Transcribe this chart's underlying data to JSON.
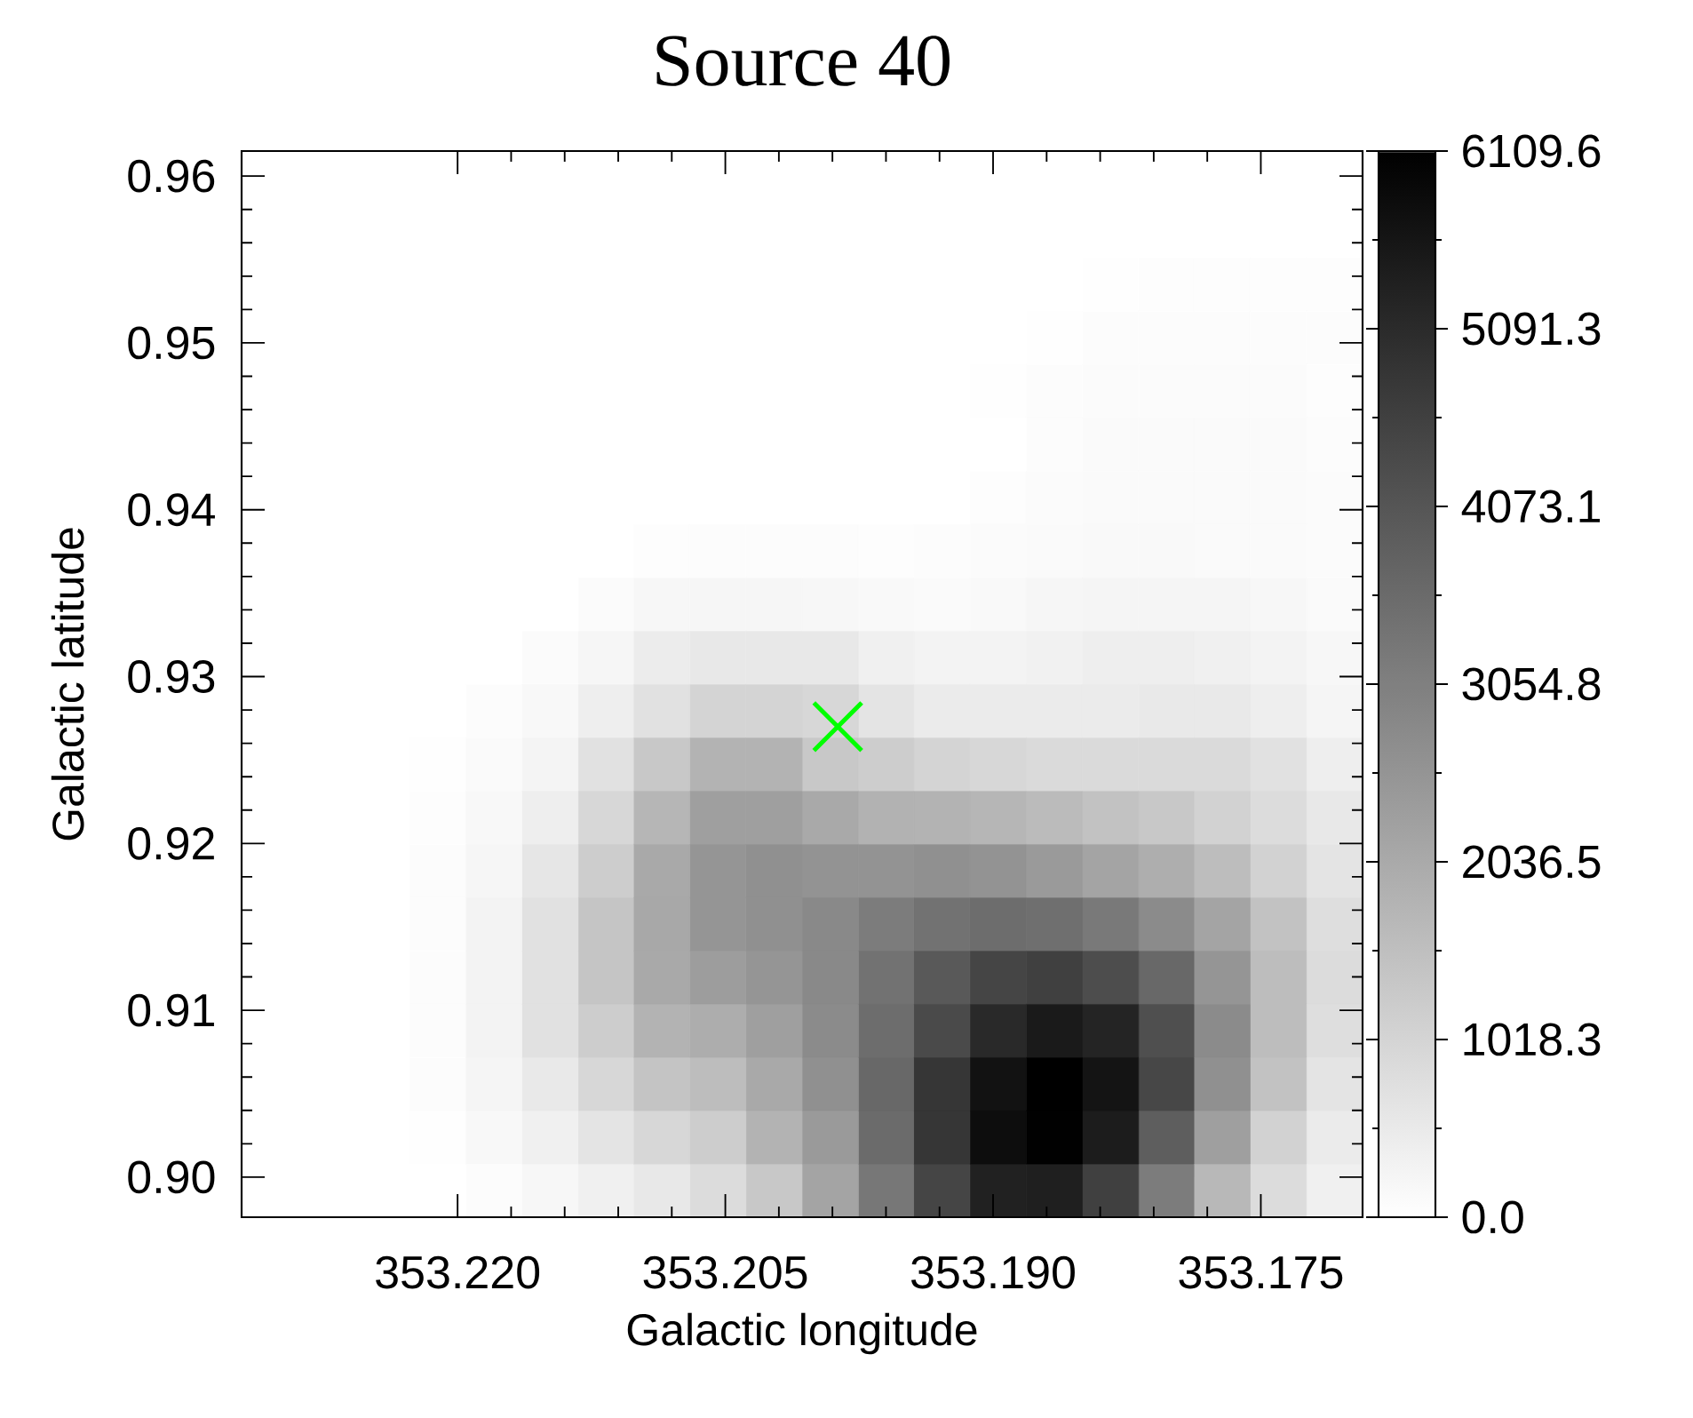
{
  "chart_data": {
    "type": "heatmap",
    "title": "Source 40",
    "xlabel": "Galactic longitude",
    "ylabel": "Galactic latitude",
    "x": [
      353.2305,
      353.2274,
      353.2243,
      353.2211,
      353.218,
      353.2148,
      353.2117,
      353.2086,
      353.2054,
      353.2023,
      353.1991,
      353.196,
      353.1929,
      353.1897,
      353.1866,
      353.1834,
      353.1803,
      353.1772,
      353.174,
      353.1709
    ],
    "cells": [
      [
        0,
        0,
        0,
        0,
        0,
        0,
        0,
        0,
        0,
        0,
        0,
        0,
        0,
        0,
        0,
        0,
        0,
        0,
        0,
        0
      ],
      [
        0,
        0,
        0,
        0,
        0,
        0,
        0,
        0,
        0,
        0,
        0,
        0,
        0,
        0,
        0,
        0,
        0,
        0,
        0,
        0
      ],
      [
        0,
        0,
        0,
        0,
        0,
        0,
        0,
        0,
        0,
        0,
        0,
        0,
        0,
        0,
        0,
        20,
        50,
        50,
        50,
        50
      ],
      [
        0,
        0,
        0,
        0,
        0,
        0,
        0,
        0,
        0,
        0,
        0,
        0,
        0,
        0,
        20,
        70,
        70,
        70,
        70,
        70
      ],
      [
        0,
        0,
        0,
        0,
        0,
        0,
        0,
        0,
        0,
        0,
        0,
        0,
        0,
        20,
        70,
        100,
        100,
        100,
        100,
        50
      ],
      [
        0,
        0,
        0,
        0,
        0,
        0,
        0,
        0,
        0,
        0,
        0,
        0,
        0,
        0,
        70,
        120,
        120,
        120,
        120,
        70
      ],
      [
        0,
        0,
        0,
        0,
        0,
        0,
        0,
        0,
        0,
        0,
        0,
        0,
        0,
        50,
        100,
        120,
        120,
        120,
        120,
        100
      ],
      [
        0,
        0,
        0,
        0,
        0,
        0,
        0,
        50,
        70,
        70,
        70,
        50,
        70,
        100,
        120,
        140,
        140,
        120,
        120,
        100
      ],
      [
        0,
        0,
        0,
        0,
        0,
        0,
        100,
        190,
        220,
        220,
        190,
        140,
        120,
        140,
        220,
        240,
        240,
        240,
        190,
        120
      ],
      [
        0,
        0,
        0,
        0,
        0,
        100,
        220,
        460,
        550,
        550,
        550,
        360,
        290,
        290,
        340,
        410,
        410,
        360,
        290,
        190
      ],
      [
        0,
        0,
        0,
        0,
        70,
        170,
        410,
        720,
        1030,
        1030,
        960,
        650,
        480,
        480,
        480,
        480,
        530,
        530,
        410,
        240
      ],
      [
        0,
        0,
        0,
        20,
        120,
        260,
        720,
        1320,
        1800,
        1800,
        1320,
        1200,
        1030,
        960,
        890,
        890,
        890,
        890,
        720,
        410
      ],
      [
        0,
        0,
        0,
        50,
        170,
        410,
        960,
        1730,
        2280,
        2280,
        2040,
        1840,
        1800,
        1730,
        1610,
        1440,
        1320,
        1080,
        840,
        550
      ],
      [
        0,
        0,
        0,
        70,
        220,
        600,
        1200,
        2040,
        2520,
        2640,
        2560,
        2560,
        2640,
        2560,
        2400,
        2160,
        1920,
        1560,
        1080,
        650
      ],
      [
        0,
        0,
        0,
        70,
        290,
        720,
        1370,
        2080,
        2520,
        2640,
        2800,
        3110,
        3350,
        3470,
        3430,
        3190,
        2760,
        2160,
        1440,
        790
      ],
      [
        0,
        0,
        0,
        70,
        290,
        720,
        1370,
        2040,
        2320,
        2520,
        2800,
        3350,
        3950,
        4430,
        4550,
        4240,
        3590,
        2520,
        1560,
        840
      ],
      [
        0,
        0,
        0,
        70,
        290,
        720,
        1200,
        1800,
        1960,
        2280,
        2760,
        3470,
        4310,
        5100,
        5440,
        5200,
        4190,
        2760,
        1560,
        790
      ],
      [
        0,
        0,
        0,
        70,
        240,
        530,
        960,
        1410,
        1560,
        2040,
        2640,
        3590,
        4790,
        5630,
        6109.6,
        5580,
        4380,
        2640,
        1440,
        650
      ],
      [
        0,
        0,
        0,
        20,
        170,
        360,
        650,
        960,
        1200,
        1800,
        2400,
        3520,
        4790,
        5750,
        6040,
        5390,
        3830,
        2280,
        1080,
        480
      ],
      [
        0,
        0,
        0,
        0,
        70,
        190,
        360,
        550,
        840,
        1320,
        2160,
        3230,
        4430,
        5270,
        5320,
        4550,
        3110,
        1680,
        840,
        360
      ]
    ],
    "clim": [
      0,
      6109.6
    ],
    "cticks": [
      {
        "value": 0,
        "label": "0.0"
      },
      1018.3,
      2036.5,
      3054.8,
      4073.1,
      5091.3,
      6109.6
    ],
    "xlim": [
      353.2321,
      353.1693
    ],
    "xticks": [
      {
        "value": 353.22,
        "label": "353.220"
      },
      353.205,
      {
        "value": 353.19,
        "label": "353.190"
      },
      353.175
    ],
    "ylim": [
      0.8976,
      0.9615
    ],
    "yticks": [
      {
        "value": 0.9,
        "label": "0.90"
      },
      0.91,
      0.92,
      0.93,
      0.94,
      0.95,
      0.96
    ],
    "series": [
      {
        "type": "scatter",
        "color": "#00ff00",
        "marker": "cross",
        "x": [
          353.1987
        ],
        "values": [
          0.927
        ]
      }
    ]
  }
}
